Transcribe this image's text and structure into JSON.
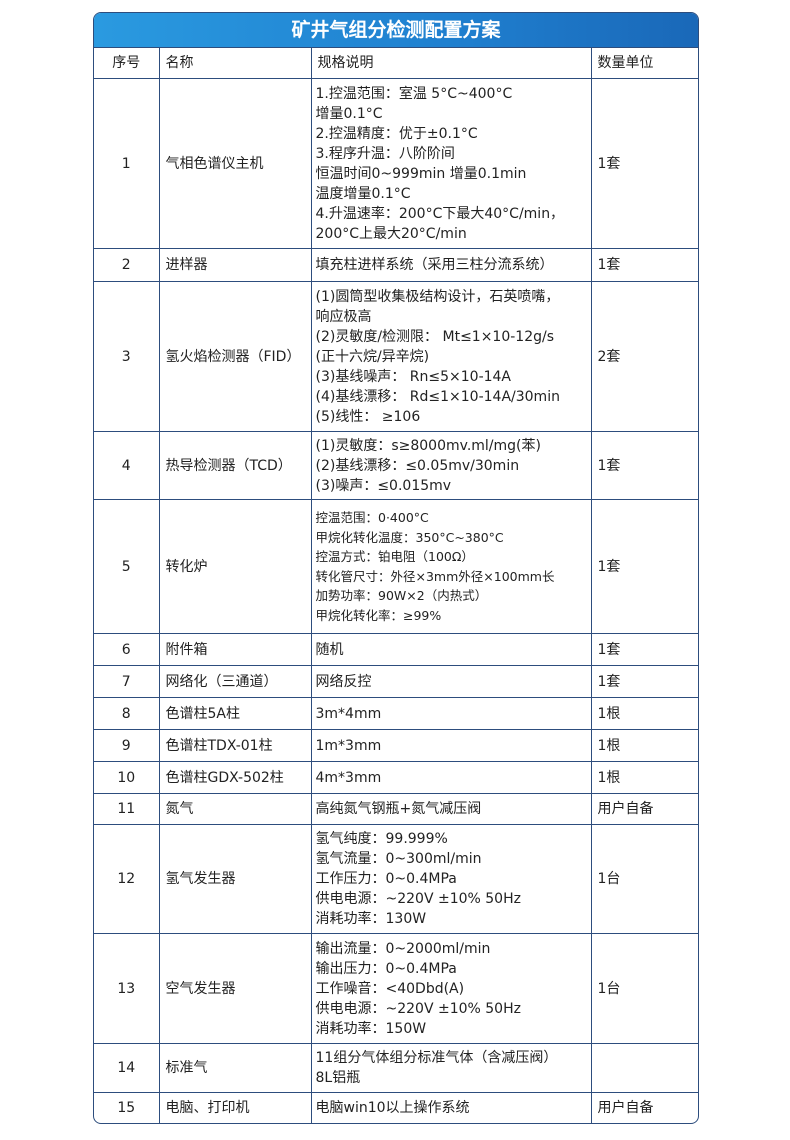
{
  "title": "矿井气组分检测配置方案",
  "headers": [
    "序号",
    "名称",
    "规格说明",
    "数量单位"
  ],
  "rows": [
    {
      "no": "1",
      "name": "气相色谱仪主机",
      "spec": [
        "1.控温范围：室温 5°C~400°C",
        "增量0.1°C",
        "2.控温精度：优于±0.1°C",
        "3.程序升温：八阶阶间",
        "恒温时间0~999min 增量0.1min",
        "温度增量0.1°C",
        "4.升温速率：200°C下最大40°C/min，",
        "200°C上最大20°C/min"
      ],
      "qty": "1套"
    },
    {
      "no": "2",
      "name": "进样器",
      "spec": [
        "填充柱进样系统（采用三柱分流系统）"
      ],
      "qty": "1套"
    },
    {
      "no": "3",
      "name": "氢火焰检测器（FID）",
      "spec": [
        "(1)圆筒型收集极结构设计，石英喷嘴，",
        "响应极高",
        "(2)灵敏度/检测限： Mt≤1×10-12g/s",
        "(正十六烷/异辛烷)",
        "(3)基线噪声： Rn≤5×10-14A",
        "(4)基线漂移： Rd≤1×10-14A/30min",
        "(5)线性： ≥106"
      ],
      "qty": "2套"
    },
    {
      "no": "4",
      "name": "热导检测器（TCD）",
      "spec": [
        "(1)灵敏度：s≥8000mv.ml/mg(苯)",
        "(2)基线漂移：≤0.05mv/30min",
        "(3)噪声：≤0.015mv"
      ],
      "qty": "1套"
    },
    {
      "no": "5",
      "name": "转化炉",
      "spec": [
        "控温范围：0·400°C",
        "甲烷化转化温度：350°C~380°C",
        "控温方式：铂电阻（100Ω）",
        "转化管尺寸：外径×3mm外径×100mm长",
        " 加势功率：90W×2（内热式）",
        "甲烷化转化率：≥99%"
      ],
      "qty": "1套"
    },
    {
      "no": "6",
      "name": "附件箱",
      "spec": [
        "随机"
      ],
      "qty": "1套"
    },
    {
      "no": "7",
      "name": "网络化（三通道）",
      "spec": [
        "网络反控"
      ],
      "qty": "1套"
    },
    {
      "no": "8",
      "name": "色谱柱5A柱",
      "spec": [
        "3m*4mm"
      ],
      "qty": "1根"
    },
    {
      "no": "9",
      "name": "色谱柱TDX-01柱",
      "spec": [
        "1m*3mm"
      ],
      "qty": "1根"
    },
    {
      "no": "10",
      "name": "色谱柱GDX-502柱",
      "spec": [
        "4m*3mm"
      ],
      "qty": "1根"
    },
    {
      "no": "11",
      "name": "氮气",
      "spec": [
        "高纯氮气钢瓶+氮气减压阀"
      ],
      "qty": "用户自备"
    },
    {
      "no": "12",
      "name": "氢气发生器",
      "spec": [
        "氢气纯度：99.999%",
        "氢气流量：0~300ml/min",
        "工作压力：0~0.4MPa",
        "供电电源：~220V ±10% 50Hz",
        "消耗功率：130W"
      ],
      "qty": "1台"
    },
    {
      "no": "13",
      "name": "空气发生器",
      "spec": [
        "输出流量：0~2000ml/min",
        "输出压力：0~0.4MPa",
        "工作噪音：<40Dbd(A)",
        "供电电源：~220V ±10% 50Hz",
        "消耗功率：150W"
      ],
      "qty": "1台"
    },
    {
      "no": "14",
      "name": "标准气",
      "spec": [
        "11组分气体组分标准气体（含减压阀）",
        "8L铝瓶"
      ],
      "qty": ""
    },
    {
      "no": "15",
      "name": "电脑、打印机",
      "spec": [
        "电脑win10以上操作系统"
      ],
      "qty": "用户自备"
    }
  ]
}
